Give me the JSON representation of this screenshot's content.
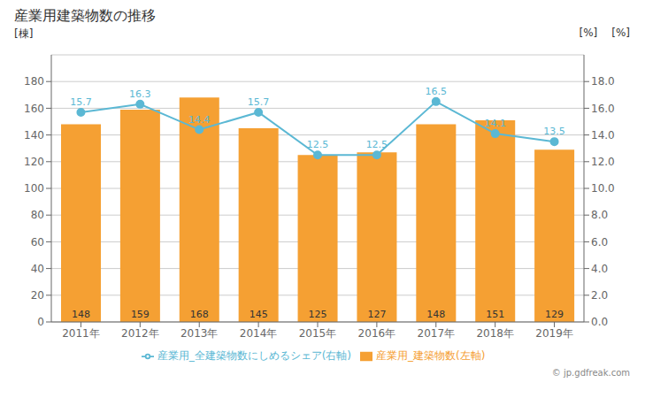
{
  "chart_data": {
    "type": "bar",
    "title": "産業用建築物数の推移",
    "categories": [
      "2011年",
      "2012年",
      "2013年",
      "2014年",
      "2015年",
      "2016年",
      "2017年",
      "2018年",
      "2019年"
    ],
    "series": [
      {
        "name": "産業用_建築物数(左軸)",
        "type": "bar",
        "color": "#F5A033",
        "values": [
          148,
          159,
          168,
          145,
          125,
          127,
          148,
          151,
          129
        ]
      },
      {
        "name": "産業用_全建築物数にしめるシェア(右軸)",
        "type": "line",
        "color": "#5BB8D4",
        "marker": "circle",
        "axis": "y2",
        "values": [
          15.7,
          16.3,
          14.4,
          15.7,
          12.5,
          12.5,
          16.5,
          14.1,
          13.5
        ]
      }
    ],
    "ylabel": "[棟]",
    "y2label": "[%]",
    "ylim": [
      0,
      200
    ],
    "yticks": [
      0,
      20,
      40,
      60,
      80,
      100,
      120,
      140,
      160,
      180
    ],
    "y2lim": [
      0,
      20.0
    ],
    "y2ticks": [
      {
        "value": 0.0,
        "label": "0.0"
      },
      {
        "value": 2.0,
        "label": "2.0"
      },
      {
        "value": 4.0,
        "label": "4.0"
      },
      {
        "value": 6.0,
        "label": "6.0"
      },
      {
        "value": 8.0,
        "label": "8.0"
      },
      {
        "value": 10.0,
        "label": "10.0"
      },
      {
        "value": 12.0,
        "label": "12.0"
      },
      {
        "value": 14.0,
        "label": "14.0"
      },
      {
        "value": 16.0,
        "label": "16.0"
      },
      {
        "value": 18.0,
        "label": "18.0"
      }
    ],
    "grid": true,
    "data_labels": true,
    "legend": "bottom",
    "annotations": [
      "[%]",
      "© jp.gdfreak.com"
    ]
  }
}
